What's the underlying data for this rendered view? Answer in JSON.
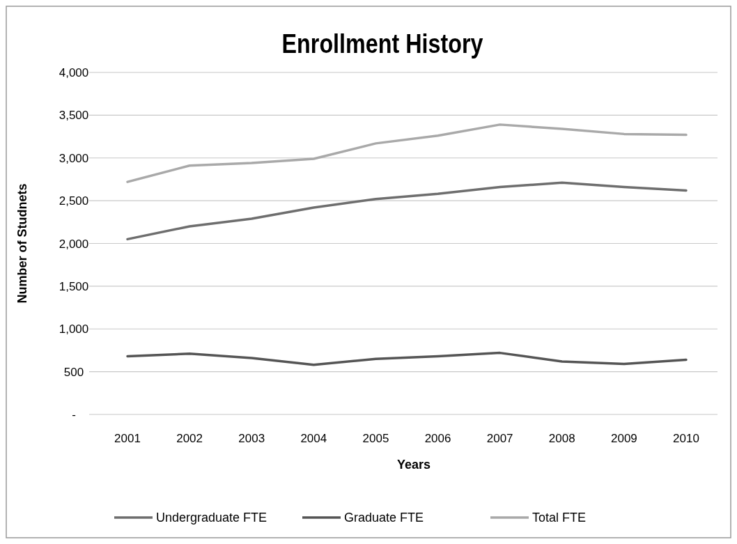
{
  "chart_data": {
    "type": "line",
    "title": "Enrollment History",
    "xlabel": "Years",
    "ylabel": "Number of Studnets",
    "categories": [
      "2001",
      "2002",
      "2003",
      "2004",
      "2005",
      "2006",
      "2007",
      "2008",
      "2009",
      "2010"
    ],
    "series": [
      {
        "name": "Undergraduate FTE",
        "color": "#6e6e6e",
        "values": [
          2050,
          2200,
          2290,
          2420,
          2520,
          2580,
          2660,
          2710,
          2660,
          2620
        ]
      },
      {
        "name": "Graduate FTE",
        "color": "#555555",
        "values": [
          680,
          710,
          660,
          580,
          650,
          680,
          720,
          620,
          590,
          640
        ]
      },
      {
        "name": "Total FTE",
        "color": "#a9a9a9",
        "values": [
          2720,
          2910,
          2940,
          2990,
          3170,
          3260,
          3390,
          3340,
          3280,
          3270
        ]
      }
    ],
    "ylim": [
      0,
      4000
    ],
    "yticks": [
      {
        "value": 0,
        "label": "-"
      },
      {
        "value": 500,
        "label": "500"
      },
      {
        "value": 1000,
        "label": "1,000"
      },
      {
        "value": 1500,
        "label": "1,500"
      },
      {
        "value": 2000,
        "label": "2,000"
      },
      {
        "value": 2500,
        "label": "2,500"
      },
      {
        "value": 3000,
        "label": "3,000"
      },
      {
        "value": 3500,
        "label": "3,500"
      },
      {
        "value": 4000,
        "label": "4,000"
      }
    ],
    "grid": "y",
    "legend": "bottom",
    "marker": "none",
    "line_style": "solid"
  }
}
